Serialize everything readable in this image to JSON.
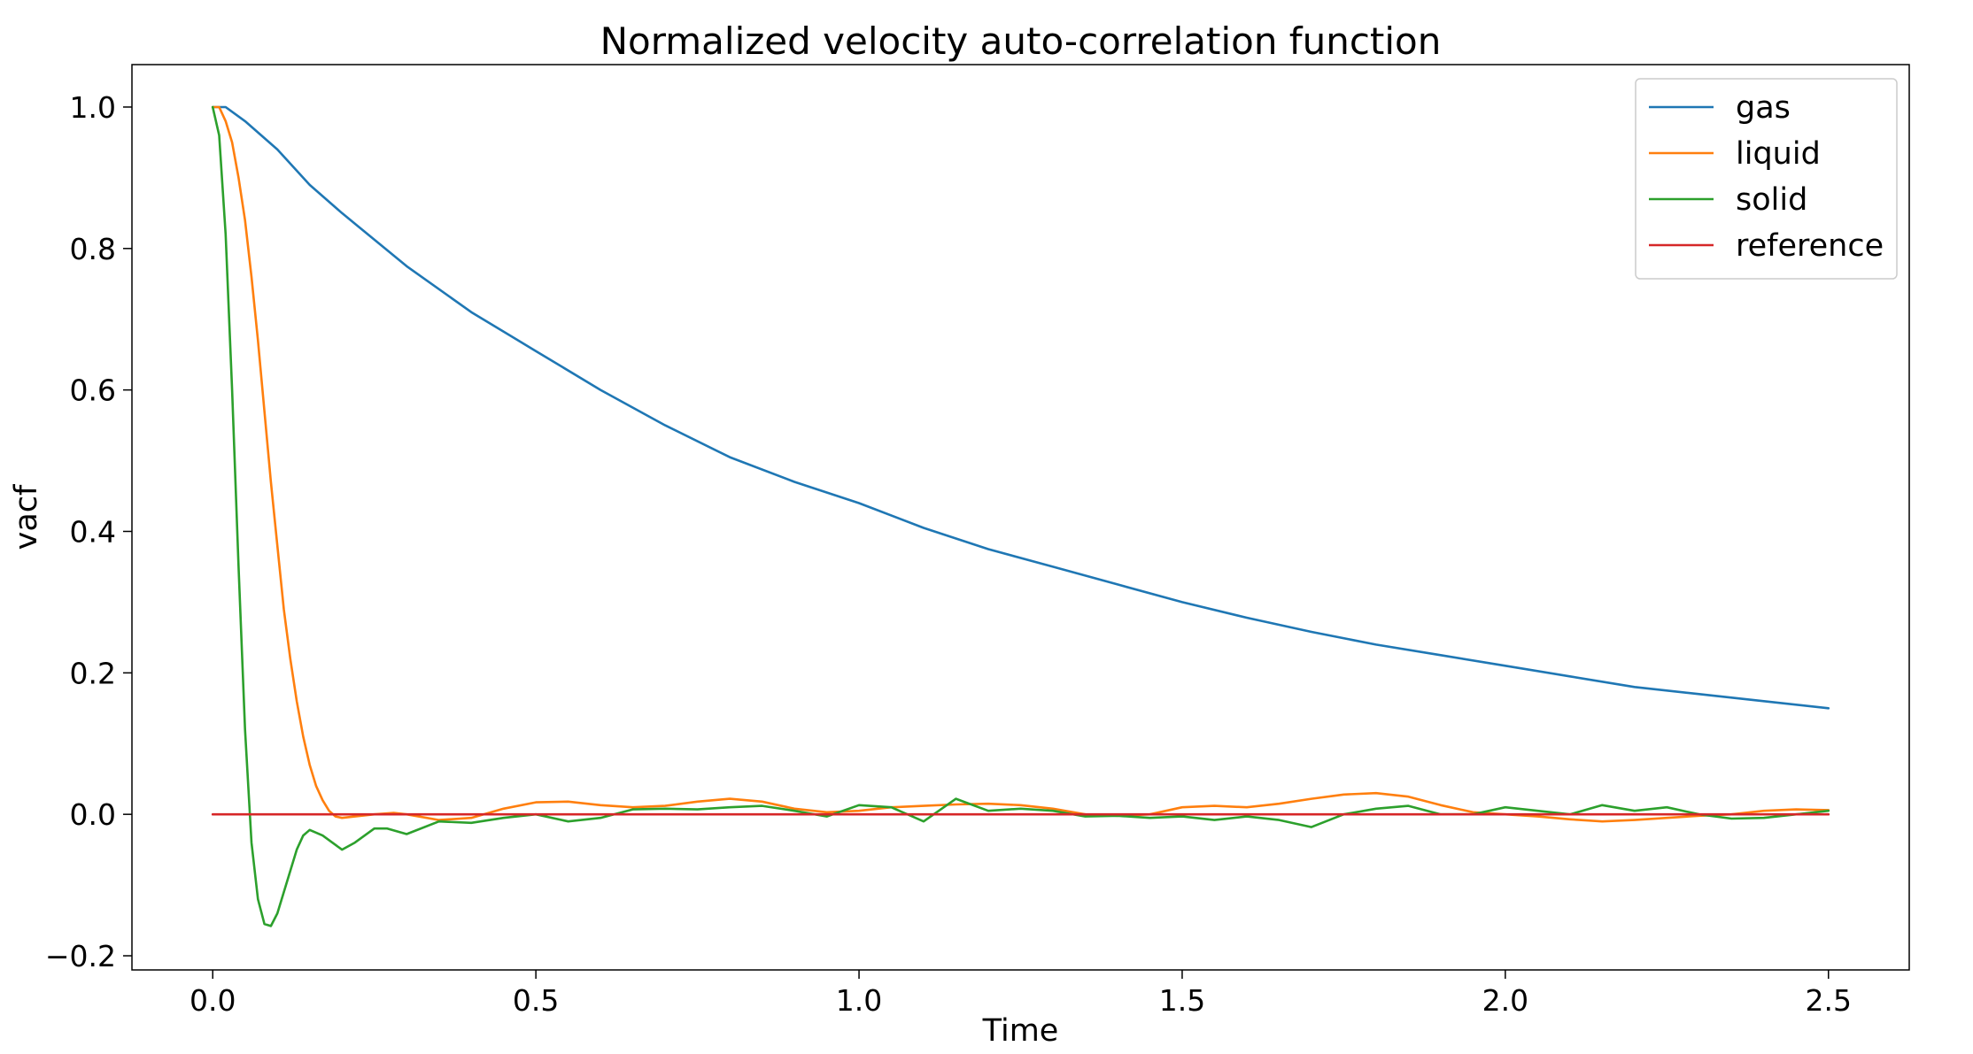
{
  "chart_data": {
    "type": "line",
    "title": "Normalized velocity auto-correlation function",
    "xlabel": "Time",
    "ylabel": "vacf",
    "xlim": [
      -0.125,
      2.625
    ],
    "ylim": [
      -0.22,
      1.06
    ],
    "xticks": [
      0.0,
      0.5,
      1.0,
      1.5,
      2.0,
      2.5
    ],
    "xtick_labels": [
      "0.0",
      "0.5",
      "1.0",
      "1.5",
      "2.0",
      "2.5"
    ],
    "yticks": [
      -0.2,
      0.0,
      0.2,
      0.4,
      0.6,
      0.8,
      1.0
    ],
    "ytick_labels": [
      "−0.2",
      "0.0",
      "0.2",
      "0.4",
      "0.6",
      "0.8",
      "1.0"
    ],
    "grid": false,
    "legend_position": "top-right",
    "series": [
      {
        "name": "gas",
        "color": "#1f77b4",
        "x": [
          0.0,
          0.02,
          0.05,
          0.1,
          0.15,
          0.2,
          0.3,
          0.4,
          0.5,
          0.6,
          0.7,
          0.8,
          0.9,
          1.0,
          1.1,
          1.2,
          1.3,
          1.4,
          1.5,
          1.6,
          1.7,
          1.8,
          1.9,
          2.0,
          2.1,
          2.2,
          2.3,
          2.4,
          2.5
        ],
        "y": [
          1.0,
          1.0,
          0.98,
          0.94,
          0.89,
          0.85,
          0.775,
          0.71,
          0.655,
          0.6,
          0.55,
          0.505,
          0.47,
          0.44,
          0.405,
          0.375,
          0.35,
          0.325,
          0.3,
          0.278,
          0.258,
          0.24,
          0.225,
          0.21,
          0.195,
          0.18,
          0.17,
          0.16,
          0.15
        ]
      },
      {
        "name": "liquid",
        "color": "#ff7f0e",
        "x": [
          0.0,
          0.01,
          0.02,
          0.03,
          0.04,
          0.05,
          0.06,
          0.07,
          0.08,
          0.09,
          0.1,
          0.11,
          0.12,
          0.13,
          0.14,
          0.15,
          0.16,
          0.17,
          0.18,
          0.19,
          0.2,
          0.22,
          0.25,
          0.28,
          0.3,
          0.35,
          0.4,
          0.45,
          0.5,
          0.55,
          0.6,
          0.65,
          0.7,
          0.75,
          0.8,
          0.85,
          0.9,
          0.95,
          1.0,
          1.05,
          1.1,
          1.15,
          1.2,
          1.25,
          1.3,
          1.35,
          1.4,
          1.45,
          1.5,
          1.55,
          1.6,
          1.65,
          1.7,
          1.75,
          1.8,
          1.85,
          1.9,
          1.95,
          2.0,
          2.05,
          2.1,
          2.15,
          2.2,
          2.25,
          2.3,
          2.35,
          2.4,
          2.45,
          2.5
        ],
        "y": [
          1.0,
          1.0,
          0.98,
          0.95,
          0.9,
          0.84,
          0.76,
          0.67,
          0.57,
          0.47,
          0.38,
          0.29,
          0.22,
          0.16,
          0.11,
          0.07,
          0.04,
          0.02,
          0.005,
          -0.003,
          -0.005,
          -0.003,
          0.0,
          0.002,
          0.0,
          -0.008,
          -0.005,
          0.008,
          0.017,
          0.018,
          0.013,
          0.01,
          0.012,
          0.018,
          0.022,
          0.018,
          0.008,
          0.003,
          0.005,
          0.01,
          0.012,
          0.014,
          0.015,
          0.013,
          0.008,
          0.0,
          -0.002,
          0.0,
          0.01,
          0.012,
          0.01,
          0.015,
          0.022,
          0.028,
          0.03,
          0.025,
          0.013,
          0.003,
          0.0,
          -0.003,
          -0.007,
          -0.01,
          -0.008,
          -0.005,
          -0.002,
          0.0,
          0.005,
          0.007,
          0.006
        ]
      },
      {
        "name": "solid",
        "color": "#2ca02c",
        "x": [
          0.0,
          0.01,
          0.02,
          0.03,
          0.04,
          0.05,
          0.06,
          0.07,
          0.08,
          0.09,
          0.1,
          0.11,
          0.12,
          0.13,
          0.14,
          0.15,
          0.17,
          0.2,
          0.22,
          0.25,
          0.27,
          0.3,
          0.35,
          0.4,
          0.45,
          0.5,
          0.55,
          0.6,
          0.65,
          0.7,
          0.75,
          0.8,
          0.85,
          0.9,
          0.95,
          1.0,
          1.05,
          1.1,
          1.15,
          1.2,
          1.25,
          1.3,
          1.35,
          1.4,
          1.45,
          1.5,
          1.55,
          1.6,
          1.65,
          1.7,
          1.75,
          1.8,
          1.85,
          1.9,
          1.95,
          2.0,
          2.05,
          2.1,
          2.15,
          2.2,
          2.25,
          2.3,
          2.35,
          2.4,
          2.45,
          2.5
        ],
        "y": [
          1.0,
          0.96,
          0.82,
          0.6,
          0.35,
          0.12,
          -0.04,
          -0.12,
          -0.155,
          -0.158,
          -0.14,
          -0.11,
          -0.08,
          -0.05,
          -0.03,
          -0.022,
          -0.03,
          -0.05,
          -0.04,
          -0.02,
          -0.02,
          -0.028,
          -0.01,
          -0.012,
          -0.005,
          0.0,
          -0.01,
          -0.005,
          0.007,
          0.008,
          0.007,
          0.01,
          0.012,
          0.005,
          -0.003,
          0.013,
          0.01,
          -0.01,
          0.022,
          0.005,
          0.008,
          0.005,
          -0.003,
          -0.002,
          -0.005,
          -0.003,
          -0.008,
          -0.003,
          -0.008,
          -0.018,
          0.0,
          0.008,
          0.012,
          0.0,
          0.0,
          0.01,
          0.005,
          0.0,
          0.013,
          0.005,
          0.01,
          0.0,
          -0.006,
          -0.005,
          0.0,
          0.005
        ]
      },
      {
        "name": "reference",
        "color": "#d62728",
        "x": [
          0.0,
          2.5
        ],
        "y": [
          0.0,
          0.0
        ]
      }
    ]
  }
}
